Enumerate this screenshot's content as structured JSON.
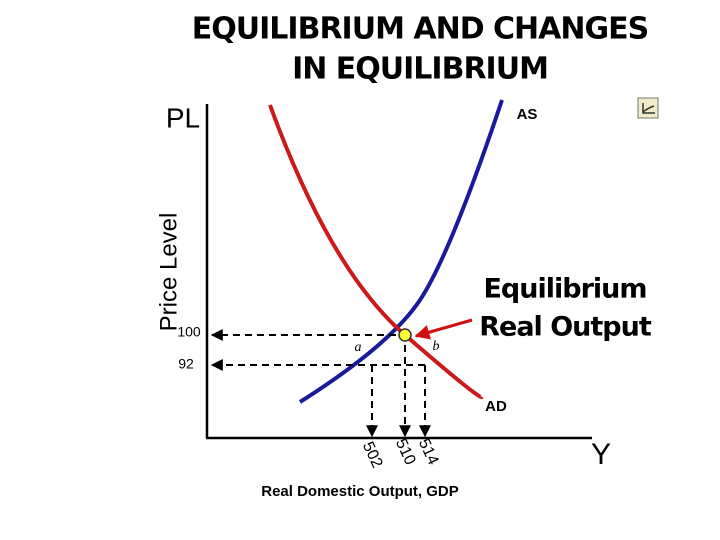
{
  "header": {
    "title_lines": [
      "EQUILIBRIUM AND CHANGES",
      "IN EQUILIBRIUM"
    ]
  },
  "axes": {
    "y_short": "PL",
    "y_label": "Price Level",
    "x_short": "Y",
    "x_label": "Real Domestic Output, GDP"
  },
  "curves": {
    "supply": "AS",
    "demand": "AD"
  },
  "price_labels": [
    "100",
    "92"
  ],
  "output_labels": [
    "502",
    "510",
    "514"
  ],
  "points": {
    "a": "a",
    "b": "b"
  },
  "callout": {
    "lines": [
      "Equilibrium",
      "Real Output"
    ]
  }
}
